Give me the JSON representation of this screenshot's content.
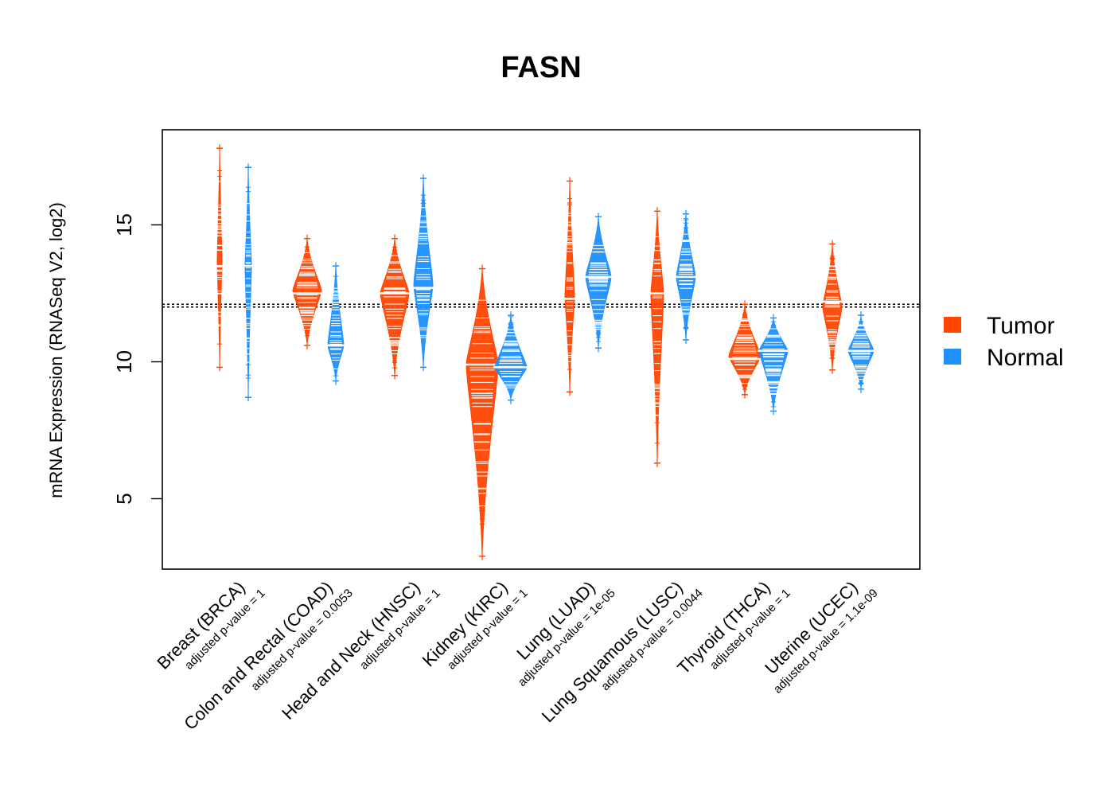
{
  "chart_data": {
    "type": "beanplot",
    "title": "FASN",
    "ylabel": "mRNA Expression (RNASeq V2, log2)",
    "xlabel": "",
    "ylim": [
      2.5,
      18.5
    ],
    "yticks": [
      5,
      10,
      15
    ],
    "reference_lines": [
      12.0,
      12.1
    ],
    "legend": {
      "position": "right",
      "entries": [
        {
          "name": "Tumor",
          "color": "#FF4500"
        },
        {
          "name": "Normal",
          "color": "#1E90FF"
        }
      ]
    },
    "categories": [
      {
        "label": "Breast (BRCA)",
        "pvalue": "adjusted p-value = 1",
        "tumor": {
          "min": 9.8,
          "max": 17.8,
          "mean": 13.5,
          "peak": 13.7,
          "width": 0.1
        },
        "normal": {
          "min": 8.7,
          "max": 17.1,
          "mean": 13.5,
          "peak": 13.5,
          "width": 0.2
        }
      },
      {
        "label": "Colon and Rectal (COAD)",
        "pvalue": "adjusted p-value = 0.0053",
        "tumor": {
          "min": 10.6,
          "max": 14.5,
          "mean": 12.5,
          "peak": 12.6,
          "width": 0.9
        },
        "normal": {
          "min": 9.3,
          "max": 13.5,
          "mean": 10.6,
          "peak": 10.6,
          "width": 0.5
        }
      },
      {
        "label": "Head and Neck (HNSC)",
        "pvalue": "adjusted p-value = 1",
        "tumor": {
          "min": 9.5,
          "max": 14.5,
          "mean": 12.5,
          "peak": 12.5,
          "width": 0.9
        },
        "normal": {
          "min": 9.8,
          "max": 16.7,
          "mean": 12.7,
          "peak": 12.8,
          "width": 0.6
        }
      },
      {
        "label": "Kidney (KIRC)",
        "pvalue": "adjusted p-value = 1",
        "tumor": {
          "min": 2.9,
          "max": 13.4,
          "mean": 9.9,
          "peak": 9.9,
          "width": 1.0
        },
        "normal": {
          "min": 8.6,
          "max": 11.7,
          "mean": 9.8,
          "peak": 9.8,
          "width": 1.0
        }
      },
      {
        "label": "Lung (LUAD)",
        "pvalue": "adjusted p-value = 1e-05",
        "tumor": {
          "min": 8.9,
          "max": 16.6,
          "mean": 12.3,
          "peak": 12.4,
          "width": 0.3
        },
        "normal": {
          "min": 10.5,
          "max": 15.3,
          "mean": 13.1,
          "peak": 13.1,
          "width": 0.8
        }
      },
      {
        "label": "Lung Squamous (LUSC)",
        "pvalue": "adjusted p-value = 0.0044",
        "tumor": {
          "min": 6.3,
          "max": 15.5,
          "mean": 12.5,
          "peak": 12.5,
          "width": 0.4
        },
        "normal": {
          "min": 10.8,
          "max": 15.4,
          "mean": 13.1,
          "peak": 13.1,
          "width": 0.6
        }
      },
      {
        "label": "Thyroid (THCA)",
        "pvalue": "adjusted p-value = 1",
        "tumor": {
          "min": 8.8,
          "max": 12.1,
          "mean": 10.1,
          "peak": 10.2,
          "width": 1.0
        },
        "normal": {
          "min": 8.2,
          "max": 11.6,
          "mean": 10.4,
          "peak": 10.4,
          "width": 0.9
        }
      },
      {
        "label": "Uterine (UCEC)",
        "pvalue": "adjusted p-value = 1.1e-09",
        "tumor": {
          "min": 9.7,
          "max": 14.3,
          "mean": 12.2,
          "peak": 12.0,
          "width": 0.6
        },
        "normal": {
          "min": 9.0,
          "max": 11.7,
          "mean": 10.4,
          "peak": 10.4,
          "width": 0.8
        }
      }
    ]
  }
}
